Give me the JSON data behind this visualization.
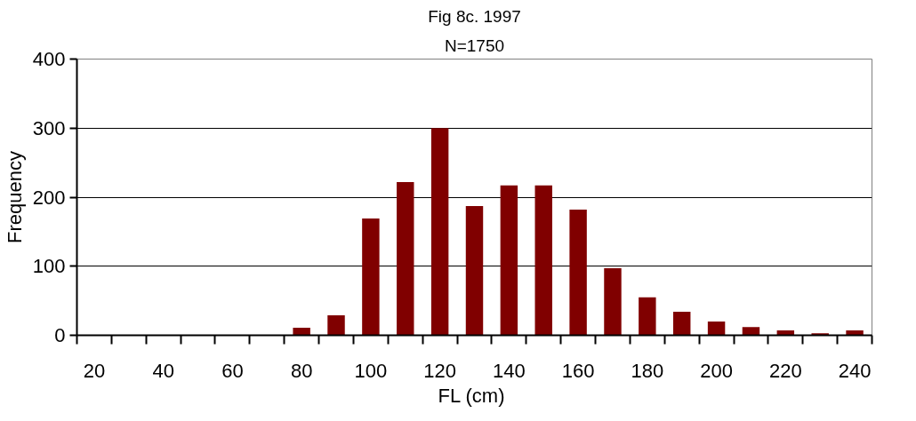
{
  "chart_data": {
    "type": "bar",
    "title": "Fig 8c. 1997",
    "subtitle": "N=1750",
    "xlabel": "FL  (cm)",
    "ylabel": "Frequency",
    "categories": [
      "20",
      null,
      "40",
      null,
      "60",
      null,
      "80",
      null,
      "100",
      null,
      "120",
      null,
      "140",
      null,
      "160",
      null,
      "180",
      null,
      "200",
      null,
      "220",
      null,
      "240"
    ],
    "values": [
      0,
      0,
      0,
      0,
      0,
      0,
      11,
      29,
      169,
      222,
      300,
      187,
      217,
      217,
      182,
      97,
      55,
      34,
      20,
      12,
      7,
      3,
      7
    ],
    "color": "#800000",
    "ylim": [
      0,
      400
    ],
    "yticks": [
      0,
      100,
      200,
      300,
      400
    ],
    "grid": "y"
  }
}
